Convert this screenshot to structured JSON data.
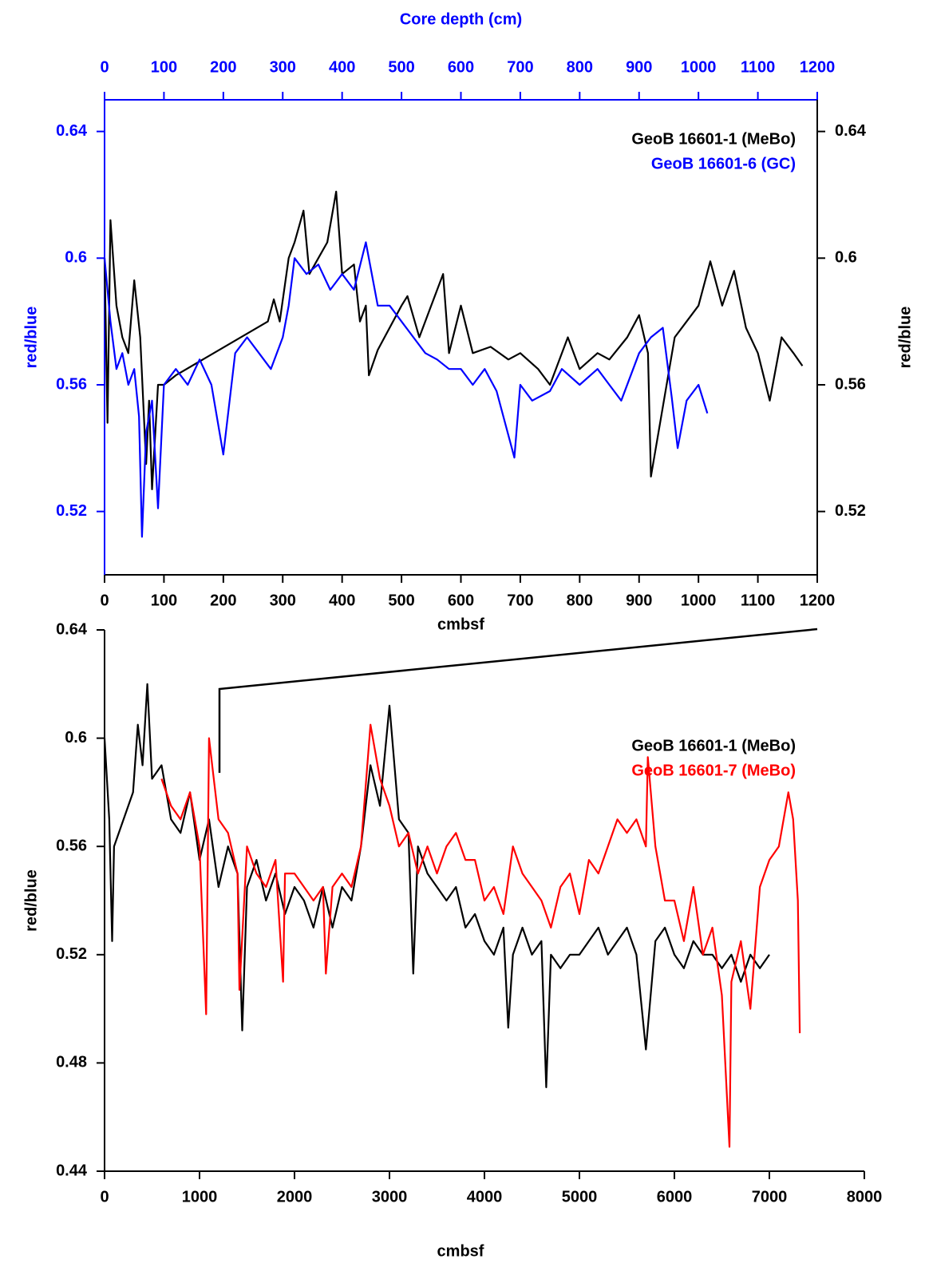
{
  "chart_data": [
    {
      "type": "line",
      "legend": "upper right",
      "x_label": "cmbsf",
      "x2_label": "Core depth (cm)",
      "y_label": "red/blue",
      "y2_label": "red/blue",
      "xlim": [
        0,
        1200
      ],
      "xticks": [
        0,
        100,
        200,
        300,
        400,
        500,
        600,
        700,
        800,
        900,
        1000,
        1100,
        1200
      ],
      "x2lim": [
        0,
        1200
      ],
      "x2ticks": [
        0,
        100,
        200,
        300,
        400,
        500,
        600,
        700,
        800,
        900,
        1000,
        1100,
        1200
      ],
      "x2_color": "#0000ff",
      "ylim": [
        0.5,
        0.65
      ],
      "yticks": [
        0.52,
        0.56,
        0.6,
        0.64
      ],
      "y_color": "#0000ff",
      "y2lim": [
        0.5,
        0.65
      ],
      "y2ticks": [
        0.52,
        0.56,
        0.6,
        0.64
      ],
      "series": [
        {
          "name": "GeoB 16601-1 (MeBo)",
          "color": "#000000",
          "x": [
            0,
            5,
            10,
            20,
            30,
            40,
            50,
            60,
            70,
            75,
            80,
            90,
            100,
            120,
            275,
            285,
            295,
            310,
            320,
            335,
            345,
            360,
            375,
            390,
            400,
            420,
            430,
            440,
            445,
            460,
            500,
            510,
            530,
            550,
            570,
            580,
            600,
            620,
            650,
            680,
            700,
            730,
            750,
            780,
            800,
            830,
            850,
            880,
            900,
            915,
            920,
            960,
            980,
            1000,
            1020,
            1040,
            1060,
            1080,
            1100,
            1120,
            1140,
            1160,
            1175
          ],
          "values": [
            0.6,
            0.548,
            0.612,
            0.585,
            0.575,
            0.57,
            0.593,
            0.575,
            0.535,
            0.555,
            0.527,
            0.56,
            0.56,
            0.563,
            0.58,
            0.587,
            0.58,
            0.6,
            0.605,
            0.615,
            0.595,
            0.6,
            0.605,
            0.621,
            0.595,
            0.598,
            0.58,
            0.585,
            0.563,
            0.571,
            0.585,
            0.588,
            0.575,
            0.585,
            0.595,
            0.57,
            0.585,
            0.57,
            0.572,
            0.568,
            0.57,
            0.565,
            0.56,
            0.575,
            0.565,
            0.57,
            0.568,
            0.575,
            0.582,
            0.57,
            0.531,
            0.575,
            0.58,
            0.585,
            0.599,
            0.585,
            0.596,
            0.578,
            0.57,
            0.555,
            0.575,
            0.57,
            0.566
          ]
        },
        {
          "name": "GeoB 16601-6 (GC)",
          "color": "#0000ff",
          "x": [
            0,
            10,
            20,
            30,
            40,
            50,
            58,
            63,
            70,
            80,
            90,
            100,
            120,
            140,
            160,
            180,
            200,
            220,
            240,
            260,
            280,
            300,
            310,
            320,
            340,
            360,
            380,
            400,
            420,
            440,
            460,
            480,
            500,
            520,
            540,
            560,
            580,
            600,
            620,
            640,
            660,
            690,
            700,
            720,
            750,
            770,
            800,
            830,
            850,
            870,
            900,
            920,
            940,
            955,
            965,
            980,
            1000,
            1015
          ],
          "values": [
            0.6,
            0.58,
            0.565,
            0.57,
            0.56,
            0.565,
            0.55,
            0.512,
            0.545,
            0.555,
            0.521,
            0.56,
            0.565,
            0.56,
            0.568,
            0.56,
            0.538,
            0.57,
            0.575,
            0.57,
            0.565,
            0.575,
            0.585,
            0.6,
            0.595,
            0.598,
            0.59,
            0.595,
            0.59,
            0.605,
            0.585,
            0.585,
            0.58,
            0.575,
            0.57,
            0.568,
            0.565,
            0.565,
            0.56,
            0.565,
            0.558,
            0.537,
            0.56,
            0.555,
            0.558,
            0.565,
            0.56,
            0.565,
            0.56,
            0.555,
            0.57,
            0.575,
            0.578,
            0.556,
            0.54,
            0.555,
            0.56,
            0.551
          ]
        }
      ]
    },
    {
      "type": "line",
      "legend": "upper right",
      "x_label": "cmbsf",
      "y_label": "red/blue",
      "xlim": [
        0,
        8000
      ],
      "xticks": [
        0,
        1000,
        2000,
        3000,
        4000,
        5000,
        6000,
        7000,
        8000
      ],
      "ylim": [
        0.44,
        0.64
      ],
      "yticks": [
        0.44,
        0.48,
        0.52,
        0.56,
        0.6,
        0.64
      ],
      "series": [
        {
          "name": "GeoB 16601-1 (MeBo)",
          "color": "#000000",
          "x": [
            0,
            50,
            80,
            100,
            300,
            350,
            400,
            450,
            500,
            600,
            700,
            800,
            900,
            1000,
            1100,
            1200,
            1300,
            1400,
            1450,
            1500,
            1600,
            1700,
            1800,
            1900,
            2000,
            2100,
            2200,
            2300,
            2400,
            2500,
            2600,
            2700,
            2800,
            2900,
            3000,
            3100,
            3200,
            3250,
            3300,
            3400,
            3500,
            3600,
            3700,
            3800,
            3900,
            4000,
            4100,
            4200,
            4250,
            4300,
            4400,
            4500,
            4600,
            4650,
            4700,
            4800,
            4900,
            5000,
            5100,
            5200,
            5300,
            5400,
            5500,
            5600,
            5700,
            5800,
            5900,
            6000,
            6100,
            6200,
            6300,
            6400,
            6500,
            6600,
            6700,
            6800,
            6900,
            7000
          ],
          "values": [
            0.6,
            0.57,
            0.525,
            0.56,
            0.58,
            0.605,
            0.59,
            0.62,
            0.585,
            0.59,
            0.57,
            0.565,
            0.58,
            0.555,
            0.57,
            0.545,
            0.56,
            0.55,
            0.492,
            0.545,
            0.555,
            0.54,
            0.55,
            0.535,
            0.545,
            0.54,
            0.53,
            0.545,
            0.53,
            0.545,
            0.54,
            0.56,
            0.59,
            0.575,
            0.612,
            0.57,
            0.565,
            0.513,
            0.56,
            0.55,
            0.545,
            0.54,
            0.545,
            0.53,
            0.535,
            0.525,
            0.52,
            0.53,
            0.493,
            0.52,
            0.53,
            0.52,
            0.525,
            0.471,
            0.52,
            0.515,
            0.52,
            0.52,
            0.525,
            0.53,
            0.52,
            0.525,
            0.53,
            0.52,
            0.485,
            0.525,
            0.53,
            0.52,
            0.515,
            0.525,
            0.52,
            0.52,
            0.515,
            0.52,
            0.51,
            0.52,
            0.515,
            0.52
          ]
        },
        {
          "name": "GeoB 16601-7 (MeBo)",
          "color": "#ff0000",
          "x": [
            600,
            700,
            800,
            900,
            1000,
            1070,
            1100,
            1200,
            1300,
            1400,
            1420,
            1500,
            1600,
            1700,
            1800,
            1880,
            1900,
            2000,
            2100,
            2200,
            2300,
            2330,
            2400,
            2500,
            2600,
            2700,
            2800,
            2900,
            3000,
            3100,
            3200,
            3300,
            3400,
            3500,
            3600,
            3700,
            3800,
            3900,
            4000,
            4100,
            4200,
            4300,
            4400,
            4500,
            4600,
            4700,
            4800,
            4900,
            5000,
            5100,
            5200,
            5300,
            5400,
            5500,
            5600,
            5700,
            5720,
            5800,
            5900,
            6000,
            6100,
            6200,
            6300,
            6400,
            6500,
            6580,
            6600,
            6700,
            6800,
            6900,
            7000,
            7100,
            7200,
            7250,
            7300,
            7320
          ],
          "values": [
            0.585,
            0.575,
            0.57,
            0.58,
            0.56,
            0.498,
            0.6,
            0.57,
            0.565,
            0.55,
            0.507,
            0.56,
            0.55,
            0.545,
            0.555,
            0.51,
            0.55,
            0.55,
            0.545,
            0.54,
            0.545,
            0.513,
            0.545,
            0.55,
            0.545,
            0.56,
            0.605,
            0.585,
            0.575,
            0.56,
            0.565,
            0.55,
            0.56,
            0.55,
            0.56,
            0.565,
            0.555,
            0.555,
            0.54,
            0.545,
            0.535,
            0.56,
            0.55,
            0.545,
            0.54,
            0.53,
            0.545,
            0.55,
            0.535,
            0.555,
            0.55,
            0.56,
            0.57,
            0.565,
            0.57,
            0.56,
            0.593,
            0.56,
            0.54,
            0.54,
            0.525,
            0.545,
            0.52,
            0.53,
            0.505,
            0.449,
            0.51,
            0.525,
            0.5,
            0.545,
            0.555,
            0.56,
            0.58,
            0.57,
            0.54,
            0.491
          ]
        }
      ]
    }
  ]
}
